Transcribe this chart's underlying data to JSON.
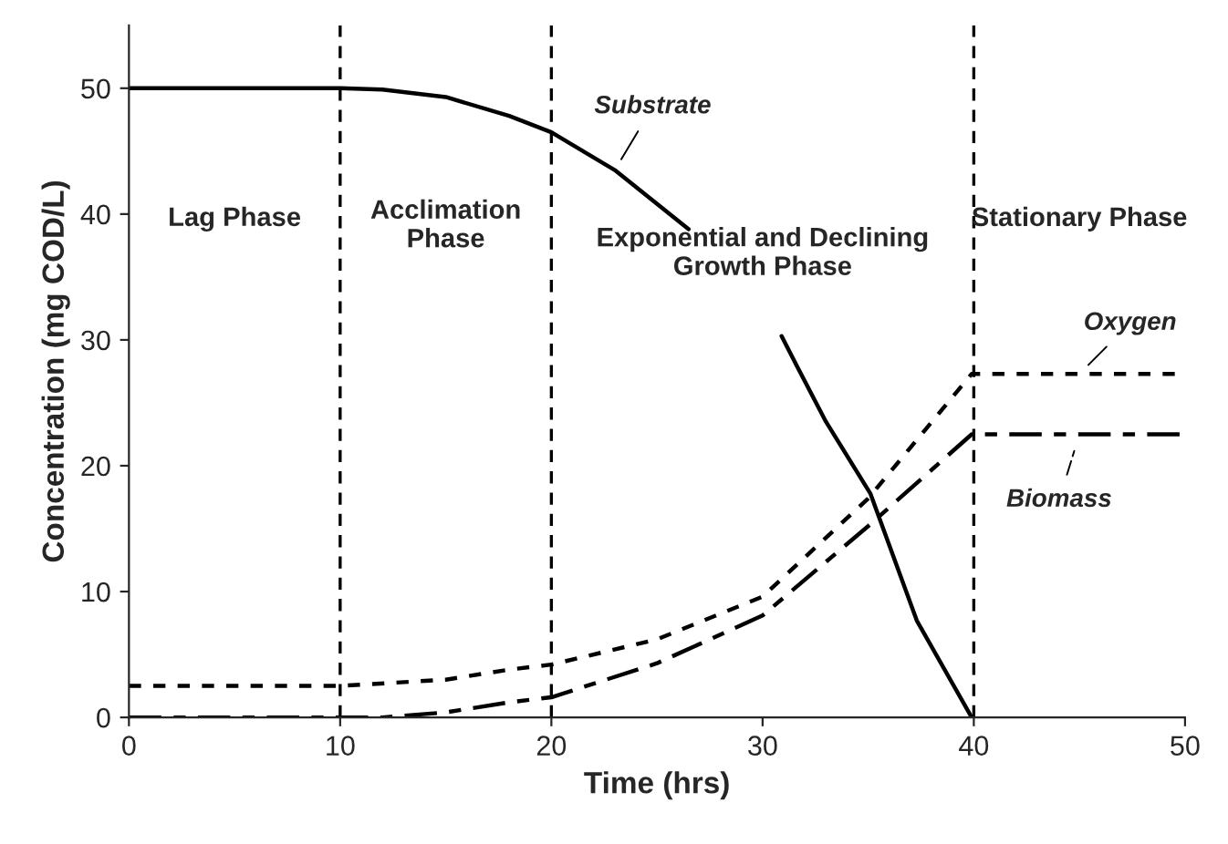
{
  "chart_data": {
    "type": "line",
    "xlabel": "Time (hrs)",
    "ylabel": "Concentration (mg COD/L)",
    "xlim": [
      0,
      50
    ],
    "ylim": [
      0,
      55
    ],
    "xticks": [
      0,
      10,
      20,
      30,
      40,
      50
    ],
    "yticks": [
      0,
      10,
      20,
      30,
      40,
      50
    ],
    "grid": false,
    "marker": "none",
    "series": [
      {
        "name": "Substrate",
        "color": "#000000",
        "line_style": "solid",
        "x": [
          0,
          5,
          10,
          12,
          15,
          18,
          20,
          23,
          26.5,
          28.5,
          30.9,
          31.6,
          33,
          35.1,
          37.3,
          39.9
        ],
        "values": [
          50,
          50,
          50,
          49.9,
          49.3,
          47.8,
          46.5,
          43.5,
          38.8,
          null,
          30.3,
          28,
          23.5,
          17.8,
          7.7,
          0
        ]
      },
      {
        "name": "Oxygen",
        "color": "#000000",
        "line_style": "dotted",
        "x": [
          0,
          5,
          10,
          15,
          18,
          20,
          25,
          30,
          35,
          39.9,
          45,
          50
        ],
        "values": [
          2.5,
          2.5,
          2.5,
          3,
          3.8,
          4.2,
          6.2,
          9.6,
          17.4,
          27.3,
          27.3,
          27.3
        ]
      },
      {
        "name": "Biomass",
        "color": "#000000",
        "line_style": "dashdot",
        "x": [
          0,
          5,
          10,
          12,
          15,
          18,
          20,
          25,
          30,
          35,
          39.9,
          45,
          50
        ],
        "values": [
          0,
          0,
          0,
          0,
          0.4,
          1.2,
          1.6,
          4.3,
          8.1,
          15.2,
          22.5,
          22.5,
          22.5
        ]
      }
    ],
    "ref_lines": [
      {
        "axis": "x",
        "value": 10,
        "line_style": "dashed",
        "color": "#000000"
      },
      {
        "axis": "x",
        "value": 20,
        "line_style": "dashed",
        "color": "#000000"
      },
      {
        "axis": "x",
        "value": 40,
        "line_style": "dashed",
        "color": "#000000"
      }
    ],
    "annotations": [
      "Lag Phase",
      "Acclimation\nPhase",
      "Exponential and Declining\nGrowth Phase",
      "Stationary Phase"
    ]
  }
}
